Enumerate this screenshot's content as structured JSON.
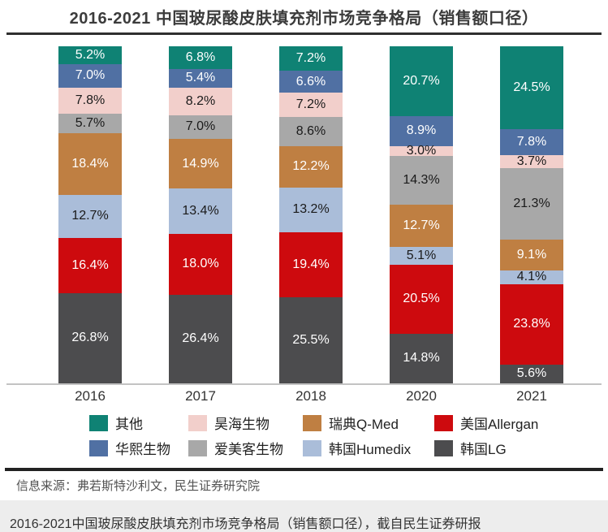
{
  "title": "2016-2021 中国玻尿酸皮肤填充剂市场竞争格局（销售额口径）",
  "source_line": "信息来源：弗若斯特沙利文，民生证券研究院",
  "caption": "2016-2021中国玻尿酸皮肤填充剂市场竞争格局（销售额口径），截自民生证券研报",
  "chart_data": {
    "type": "bar",
    "subtype": "stacked-100-percent",
    "unit": "%",
    "title": "2016-2021 中国玻尿酸皮肤填充剂市场竞争格局（销售额口径）",
    "categories": [
      "2016",
      "2017",
      "2018",
      "2020",
      "2021"
    ],
    "series": [
      {
        "name": "其他",
        "color": "#0f8274",
        "label_color": "#ffffff",
        "values": [
          5.2,
          6.8,
          7.2,
          20.7,
          24.5
        ]
      },
      {
        "name": "华熙生物",
        "color": "#5070a3",
        "label_color": "#ffffff",
        "values": [
          7.0,
          5.4,
          6.6,
          8.9,
          7.8
        ]
      },
      {
        "name": "昊海生物",
        "color": "#f2cfcb",
        "label_color": "#1a1a1a",
        "values": [
          7.8,
          8.2,
          7.2,
          3.0,
          3.7
        ]
      },
      {
        "name": "爱美客生物",
        "color": "#a8a8a8",
        "label_color": "#1a1a1a",
        "values": [
          5.7,
          7.0,
          8.6,
          14.3,
          21.3
        ]
      },
      {
        "name": "瑞典Q-Med",
        "color": "#bf7f42",
        "label_color": "#ffffff",
        "values": [
          18.4,
          14.9,
          12.2,
          12.7,
          9.1
        ]
      },
      {
        "name": "韩国Humedix",
        "color": "#aabdd9",
        "label_color": "#1a1a1a",
        "values": [
          12.7,
          13.4,
          13.2,
          5.1,
          4.1
        ]
      },
      {
        "name": "美国Allergan",
        "color": "#cd0a0e",
        "label_color": "#ffffff",
        "values": [
          16.4,
          18.0,
          19.4,
          20.5,
          23.8
        ]
      },
      {
        "name": "韩国LG",
        "color": "#4c4c4e",
        "label_color": "#ffffff",
        "values": [
          26.8,
          26.4,
          25.5,
          14.8,
          5.6
        ]
      }
    ],
    "stack_order_top_to_bottom": [
      "其他",
      "华熙生物",
      "昊海生物",
      "爱美客生物",
      "瑞典Q-Med",
      "韩国Humedix",
      "美国Allergan",
      "韩国LG"
    ],
    "legend_order": [
      "其他",
      "昊海生物",
      "瑞典Q-Med",
      "美国Allergan",
      "华熙生物",
      "爱美客生物",
      "韩国Humedix",
      "韩国LG"
    ],
    "legend_position": "bottom",
    "grid": false,
    "value_labels": "inside-center",
    "ylim": [
      0,
      100
    ]
  }
}
